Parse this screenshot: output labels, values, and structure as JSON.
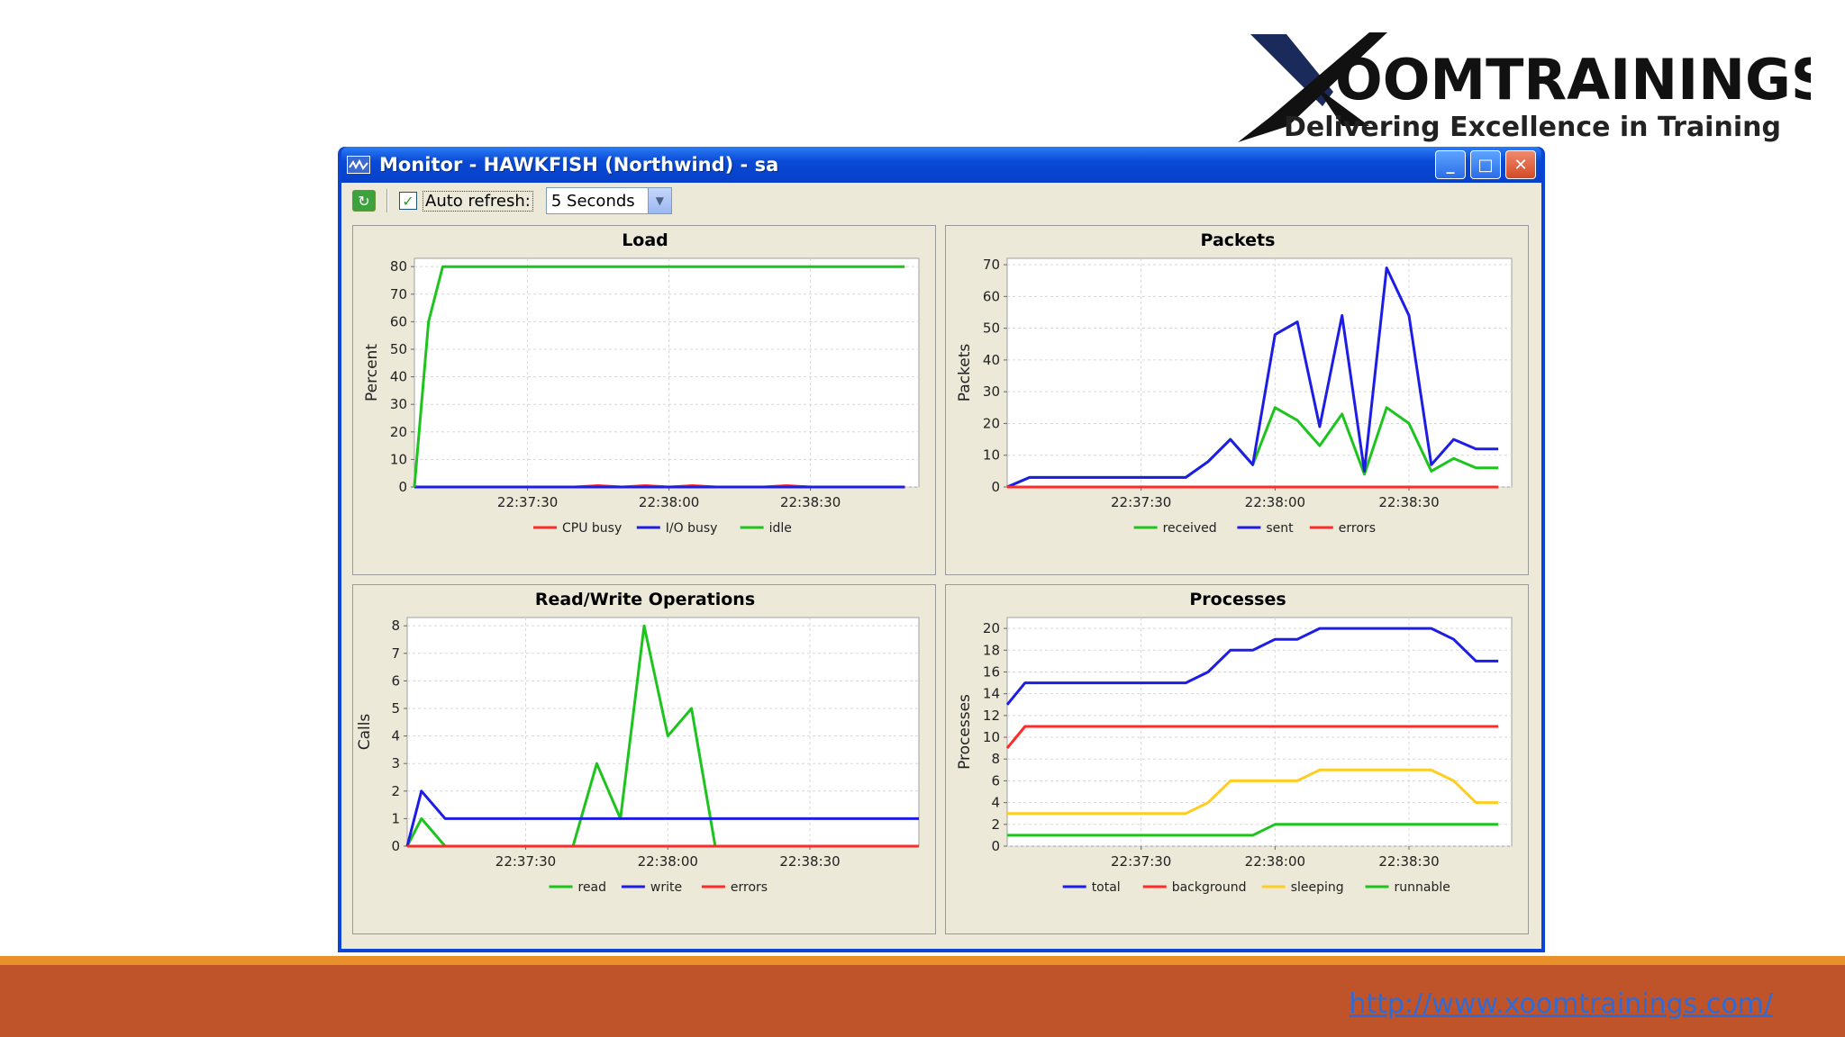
{
  "logo": {
    "brand": "OOMTRAININGS",
    "tagline": "Delivering Excellence in Training"
  },
  "footer": {
    "link": "http://www.xoomtrainings.com/"
  },
  "window": {
    "title": "Monitor - HAWKFISH (Northwind) - sa",
    "minimize_glyph": "_",
    "maximize_glyph": "□",
    "close_glyph": "✕"
  },
  "toolbar": {
    "refresh_icon": "refresh-icon",
    "auto_refresh_checked": true,
    "auto_refresh_label": "Auto refresh:",
    "interval_value": "5 Seconds",
    "check_glyph": "✓",
    "arrow_glyph": "▼",
    "refresh_glyph": "↻"
  },
  "colors": {
    "red": "#ff2a2a",
    "blue": "#1d1de6",
    "green": "#1ec41e",
    "yellow": "#ffcc22"
  },
  "chart_data": [
    {
      "id": "load",
      "type": "line",
      "title": "Load",
      "ylabel": "Percent",
      "ylim": [
        0,
        83
      ],
      "yticks": [
        0,
        10,
        20,
        30,
        40,
        50,
        60,
        70,
        80
      ],
      "x": [
        "22:37:06",
        "22:37:09",
        "22:37:12",
        "22:37:15",
        "22:37:20",
        "22:37:25",
        "22:37:30",
        "22:37:35",
        "22:37:40",
        "22:37:45",
        "22:37:50",
        "22:37:55",
        "22:38:00",
        "22:38:05",
        "22:38:10",
        "22:38:15",
        "22:38:20",
        "22:38:25",
        "22:38:30",
        "22:38:35",
        "22:38:40",
        "22:38:45",
        "22:38:50"
      ],
      "xlim": [
        "22:37:06",
        "22:38:53"
      ],
      "xticks": [
        "22:37:30",
        "22:38:00",
        "22:38:30"
      ],
      "series": [
        {
          "name": "CPU busy",
          "color": "#ff2a2a",
          "values": [
            0,
            0,
            0,
            0,
            0,
            0,
            0,
            0,
            0,
            0.5,
            0,
            0.5,
            0,
            0.5,
            0,
            0,
            0,
            0.5,
            0,
            0,
            0,
            0,
            0
          ]
        },
        {
          "name": "I/O busy",
          "color": "#1d1de6",
          "values": [
            0,
            0,
            0,
            0,
            0,
            0,
            0,
            0,
            0,
            0,
            0,
            0,
            0,
            0,
            0,
            0,
            0,
            0,
            0,
            0,
            0,
            0,
            0
          ]
        },
        {
          "name": "idle",
          "color": "#1ec41e",
          "values": [
            0,
            60,
            80,
            80,
            80,
            80,
            80,
            80,
            80,
            80,
            80,
            80,
            80,
            80,
            80,
            80,
            80,
            80,
            80,
            80,
            80,
            80,
            80
          ]
        }
      ],
      "grid": true,
      "legend": "bottom"
    },
    {
      "id": "packets",
      "type": "line",
      "title": "Packets",
      "ylabel": "Packets",
      "ylim": [
        0,
        72
      ],
      "yticks": [
        0,
        10,
        20,
        30,
        40,
        50,
        60,
        70
      ],
      "x": [
        "22:37:00",
        "22:37:05",
        "22:37:10",
        "22:37:15",
        "22:37:20",
        "22:37:25",
        "22:37:30",
        "22:37:35",
        "22:37:40",
        "22:37:45",
        "22:37:50",
        "22:37:55",
        "22:38:00",
        "22:38:05",
        "22:38:10",
        "22:38:15",
        "22:38:20",
        "22:38:25",
        "22:38:30",
        "22:38:35",
        "22:38:40",
        "22:38:45",
        "22:38:50"
      ],
      "xlim": [
        "22:37:00",
        "22:38:53"
      ],
      "xticks": [
        "22:37:30",
        "22:38:00",
        "22:38:30"
      ],
      "series": [
        {
          "name": "received",
          "color": "#1ec41e",
          "values": [
            0,
            3,
            3,
            3,
            3,
            3,
            3,
            3,
            3,
            8,
            15,
            7,
            25,
            21,
            13,
            23,
            4,
            25,
            20,
            5,
            9,
            6,
            6
          ]
        },
        {
          "name": "sent",
          "color": "#1d1de6",
          "values": [
            0,
            3,
            3,
            3,
            3,
            3,
            3,
            3,
            3,
            8,
            15,
            7,
            48,
            52,
            19,
            54,
            5,
            69,
            54,
            7,
            15,
            12,
            12
          ]
        },
        {
          "name": "errors",
          "color": "#ff2a2a",
          "values": [
            0,
            0,
            0,
            0,
            0,
            0,
            0,
            0,
            0,
            0,
            0,
            0,
            0,
            0,
            0,
            0,
            0,
            0,
            0,
            0,
            0,
            0,
            0
          ]
        }
      ],
      "grid": true,
      "legend": "bottom"
    },
    {
      "id": "rw",
      "type": "line",
      "title": "Read/Write Operations",
      "ylabel": "Calls",
      "ylim": [
        0,
        8.3
      ],
      "yticks": [
        0,
        1,
        2,
        3,
        4,
        5,
        6,
        7,
        8
      ],
      "x": [
        "22:37:05",
        "22:37:08",
        "22:37:13",
        "22:37:20",
        "22:37:30",
        "22:37:40",
        "22:37:45",
        "22:37:50",
        "22:37:55",
        "22:38:00",
        "22:38:05",
        "22:38:10",
        "22:38:15",
        "22:38:20",
        "22:38:25",
        "22:38:30",
        "22:38:40",
        "22:38:53"
      ],
      "xlim": [
        "22:37:05",
        "22:38:53"
      ],
      "xticks": [
        "22:37:30",
        "22:38:00",
        "22:38:30"
      ],
      "series": [
        {
          "name": "read",
          "color": "#1ec41e",
          "values": [
            0,
            1,
            0,
            0,
            0,
            0,
            3,
            1,
            8,
            4,
            5,
            0,
            0,
            0,
            0,
            0,
            0,
            0
          ]
        },
        {
          "name": "write",
          "color": "#1d1de6",
          "values": [
            0,
            2,
            1,
            1,
            1,
            1,
            1,
            1,
            1,
            1,
            1,
            1,
            1,
            1,
            1,
            1,
            1,
            1
          ]
        },
        {
          "name": "errors",
          "color": "#ff2a2a",
          "values": [
            0,
            0,
            0,
            0,
            0,
            0,
            0,
            0,
            0,
            0,
            0,
            0,
            0,
            0,
            0,
            0,
            0,
            0
          ]
        }
      ],
      "grid": true,
      "legend": "bottom"
    },
    {
      "id": "processes",
      "type": "line",
      "title": "Processes",
      "ylabel": "Processes",
      "ylim": [
        0,
        21
      ],
      "yticks": [
        0,
        2,
        4,
        6,
        8,
        10,
        12,
        14,
        16,
        18,
        20
      ],
      "x": [
        "22:37:00",
        "22:37:04",
        "22:37:05",
        "22:37:10",
        "22:37:15",
        "22:37:20",
        "22:37:25",
        "22:37:30",
        "22:37:35",
        "22:37:40",
        "22:37:45",
        "22:37:50",
        "22:37:55",
        "22:38:00",
        "22:38:05",
        "22:38:10",
        "22:38:15",
        "22:38:20",
        "22:38:25",
        "22:38:30",
        "22:38:35",
        "22:38:40",
        "22:38:45",
        "22:38:50"
      ],
      "xlim": [
        "22:37:00",
        "22:38:53"
      ],
      "xticks": [
        "22:37:30",
        "22:38:00",
        "22:38:30"
      ],
      "series": [
        {
          "name": "total",
          "color": "#1d1de6",
          "values": [
            13,
            15,
            15,
            15,
            15,
            15,
            15,
            15,
            15,
            15,
            16,
            18,
            18,
            19,
            19,
            20,
            20,
            20,
            20,
            20,
            20,
            19,
            17,
            17
          ]
        },
        {
          "name": "background",
          "color": "#ff2a2a",
          "values": [
            9,
            11,
            11,
            11,
            11,
            11,
            11,
            11,
            11,
            11,
            11,
            11,
            11,
            11,
            11,
            11,
            11,
            11,
            11,
            11,
            11,
            11,
            11,
            11
          ]
        },
        {
          "name": "sleeping",
          "color": "#ffcc22",
          "values": [
            3,
            3,
            3,
            3,
            3,
            3,
            3,
            3,
            3,
            3,
            4,
            6,
            6,
            6,
            6,
            7,
            7,
            7,
            7,
            7,
            7,
            6,
            4,
            4
          ]
        },
        {
          "name": "runnable",
          "color": "#1ec41e",
          "values": [
            1,
            1,
            1,
            1,
            1,
            1,
            1,
            1,
            1,
            1,
            1,
            1,
            1,
            2,
            2,
            2,
            2,
            2,
            2,
            2,
            2,
            2,
            2,
            2
          ]
        }
      ],
      "grid": true,
      "legend": "bottom"
    }
  ]
}
